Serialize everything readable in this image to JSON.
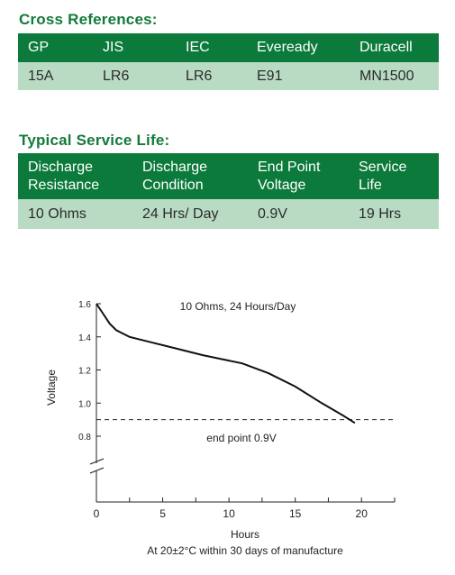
{
  "cross_references": {
    "title": "Cross References:",
    "headers": [
      "GP",
      "JIS",
      "IEC",
      "Eveready",
      "Duracell"
    ],
    "values": [
      "15A",
      "LR6",
      "LR6",
      "E91",
      "MN1500"
    ]
  },
  "service_life": {
    "title": "Typical Service Life:",
    "headers": [
      [
        "Discharge",
        "Resistance"
      ],
      [
        "Discharge",
        "Condition"
      ],
      [
        "End Point",
        "Voltage"
      ],
      [
        "Service",
        "Life"
      ]
    ],
    "values": [
      "10 Ohms",
      "24 Hrs/ Day",
      "0.9V",
      "19 Hrs"
    ]
  },
  "chart_data": {
    "type": "line",
    "series": [
      {
        "name": "10 Ohms, 24 Hours/Day",
        "x": [
          0,
          0.5,
          1,
          1.5,
          2,
          2.5,
          4,
          6,
          8,
          9.5,
          11,
          13,
          15,
          17,
          18.5,
          19.5
        ],
        "y": [
          1.6,
          1.54,
          1.48,
          1.44,
          1.42,
          1.4,
          1.37,
          1.33,
          1.29,
          1.265,
          1.24,
          1.18,
          1.1,
          1.0,
          0.93,
          0.88
        ]
      }
    ],
    "annotations": [
      "10 Ohms, 24 Hours/Day",
      "end point 0.9V"
    ],
    "reference_line": {
      "y": 0.9,
      "style": "dashed"
    },
    "xlabel": "Hours",
    "ylabel": "Voltage",
    "caption": "At 20±2°C within 30 days of manufacture",
    "x_ticks": [
      0,
      5,
      10,
      15,
      20
    ],
    "y_ticks": [
      0.8,
      1.0,
      1.2,
      1.4,
      1.6
    ],
    "y_tick_labels": [
      "0.8",
      "1.0",
      "1.2",
      "1.4",
      "1.6"
    ],
    "xlim": [
      0,
      22.5
    ],
    "ylim": [
      0.8,
      1.6
    ],
    "y_axis_break": true,
    "grid": false
  }
}
